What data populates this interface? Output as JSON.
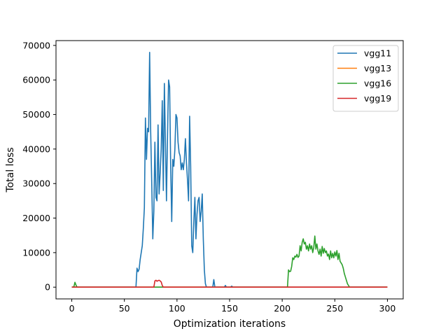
{
  "chart_data": {
    "type": "line",
    "title": "",
    "xlabel": "Optimization iterations",
    "ylabel": "Total loss",
    "xlim": [
      -15,
      315
    ],
    "ylim": [
      -3400,
      71400
    ],
    "xticks": [
      0,
      50,
      100,
      150,
      200,
      250,
      300
    ],
    "yticks": [
      0,
      10000,
      20000,
      30000,
      40000,
      50000,
      60000,
      70000
    ],
    "legend_position": "upper right",
    "grid": false,
    "series": [
      {
        "name": "vgg11",
        "color": "#1f77b4",
        "points": [
          [
            0,
            0
          ],
          [
            61,
            0
          ],
          [
            62,
            5500
          ],
          [
            63,
            4500
          ],
          [
            64,
            5200
          ],
          [
            65,
            8000
          ],
          [
            66,
            10000
          ],
          [
            67,
            12000
          ],
          [
            68,
            17000
          ],
          [
            69,
            23000
          ],
          [
            70,
            49000
          ],
          [
            71,
            37000
          ],
          [
            72,
            46000
          ],
          [
            73,
            45000
          ],
          [
            74,
            68000
          ],
          [
            75,
            45000
          ],
          [
            76,
            30000
          ],
          [
            77,
            14000
          ],
          [
            78,
            22000
          ],
          [
            79,
            42000
          ],
          [
            80,
            26000
          ],
          [
            81,
            25000
          ],
          [
            82,
            47000
          ],
          [
            83,
            27000
          ],
          [
            84,
            33000
          ],
          [
            85,
            40000
          ],
          [
            86,
            54000
          ],
          [
            87,
            28000
          ],
          [
            88,
            59000
          ],
          [
            89,
            42000
          ],
          [
            90,
            25000
          ],
          [
            91,
            44000
          ],
          [
            92,
            60000
          ],
          [
            93,
            58000
          ],
          [
            94,
            35000
          ],
          [
            95,
            19000
          ],
          [
            96,
            37000
          ],
          [
            97,
            35000
          ],
          [
            98,
            40000
          ],
          [
            99,
            50000
          ],
          [
            100,
            49000
          ],
          [
            101,
            42000
          ],
          [
            102,
            39000
          ],
          [
            103,
            38000
          ],
          [
            104,
            34000
          ],
          [
            105,
            36000
          ],
          [
            106,
            34000
          ],
          [
            107,
            37000
          ],
          [
            108,
            43000
          ],
          [
            109,
            36000
          ],
          [
            110,
            31000
          ],
          [
            111,
            25000
          ],
          [
            112,
            49500
          ],
          [
            113,
            35000
          ],
          [
            114,
            12000
          ],
          [
            115,
            10000
          ],
          [
            116,
            19000
          ],
          [
            117,
            26000
          ],
          [
            118,
            14000
          ],
          [
            119,
            21000
          ],
          [
            120,
            25000
          ],
          [
            121,
            26000
          ],
          [
            122,
            19000
          ],
          [
            123,
            22000
          ],
          [
            124,
            27000
          ],
          [
            125,
            14000
          ],
          [
            126,
            5000
          ],
          [
            127,
            1000
          ],
          [
            128,
            0
          ],
          [
            134,
            0
          ],
          [
            135,
            2200
          ],
          [
            136,
            0
          ],
          [
            145,
            0
          ],
          [
            146,
            500
          ],
          [
            147,
            0
          ],
          [
            151,
            0
          ],
          [
            152,
            300
          ],
          [
            153,
            0
          ],
          [
            300,
            0
          ]
        ]
      },
      {
        "name": "vgg13",
        "color": "#ff7f0e",
        "points": [
          [
            0,
            0
          ],
          [
            300,
            0
          ]
        ]
      },
      {
        "name": "vgg16",
        "color": "#2ca02c",
        "points": [
          [
            0,
            0
          ],
          [
            2,
            100
          ],
          [
            3,
            1400
          ],
          [
            4,
            600
          ],
          [
            5,
            0
          ],
          [
            205,
            0
          ],
          [
            206,
            5000
          ],
          [
            207,
            4500
          ],
          [
            208,
            4600
          ],
          [
            209,
            6000
          ],
          [
            210,
            8500
          ],
          [
            211,
            8000
          ],
          [
            212,
            9000
          ],
          [
            213,
            8700
          ],
          [
            214,
            9500
          ],
          [
            215,
            8600
          ],
          [
            216,
            9000
          ],
          [
            217,
            12000
          ],
          [
            218,
            10500
          ],
          [
            219,
            13000
          ],
          [
            220,
            14000
          ],
          [
            221,
            12500
          ],
          [
            222,
            13000
          ],
          [
            223,
            11000
          ],
          [
            224,
            12000
          ],
          [
            225,
            10500
          ],
          [
            226,
            12500
          ],
          [
            227,
            11000
          ],
          [
            228,
            12000
          ],
          [
            229,
            10000
          ],
          [
            230,
            11500
          ],
          [
            231,
            14800
          ],
          [
            232,
            11000
          ],
          [
            233,
            12500
          ],
          [
            234,
            10500
          ],
          [
            235,
            9500
          ],
          [
            236,
            11000
          ],
          [
            237,
            9000
          ],
          [
            238,
            11800
          ],
          [
            239,
            9800
          ],
          [
            240,
            11200
          ],
          [
            241,
            10000
          ],
          [
            242,
            10500
          ],
          [
            243,
            9000
          ],
          [
            244,
            9600
          ],
          [
            245,
            8000
          ],
          [
            246,
            10500
          ],
          [
            247,
            8500
          ],
          [
            248,
            9800
          ],
          [
            249,
            8500
          ],
          [
            250,
            10200
          ],
          [
            251,
            9000
          ],
          [
            252,
            10600
          ],
          [
            253,
            8000
          ],
          [
            254,
            9800
          ],
          [
            255,
            7500
          ],
          [
            256,
            7000
          ],
          [
            257,
            6500
          ],
          [
            258,
            5500
          ],
          [
            259,
            4000
          ],
          [
            260,
            3000
          ],
          [
            261,
            2000
          ],
          [
            262,
            1000
          ],
          [
            263,
            500
          ],
          [
            264,
            0
          ],
          [
            300,
            0
          ]
        ]
      },
      {
        "name": "vgg19",
        "color": "#d62728",
        "points": [
          [
            0,
            0
          ],
          [
            78,
            0
          ],
          [
            79,
            1800
          ],
          [
            80,
            2000
          ],
          [
            81,
            1700
          ],
          [
            82,
            1900
          ],
          [
            83,
            2000
          ],
          [
            84,
            1800
          ],
          [
            85,
            1500
          ],
          [
            86,
            500
          ],
          [
            87,
            0
          ],
          [
            300,
            0
          ]
        ]
      }
    ]
  }
}
